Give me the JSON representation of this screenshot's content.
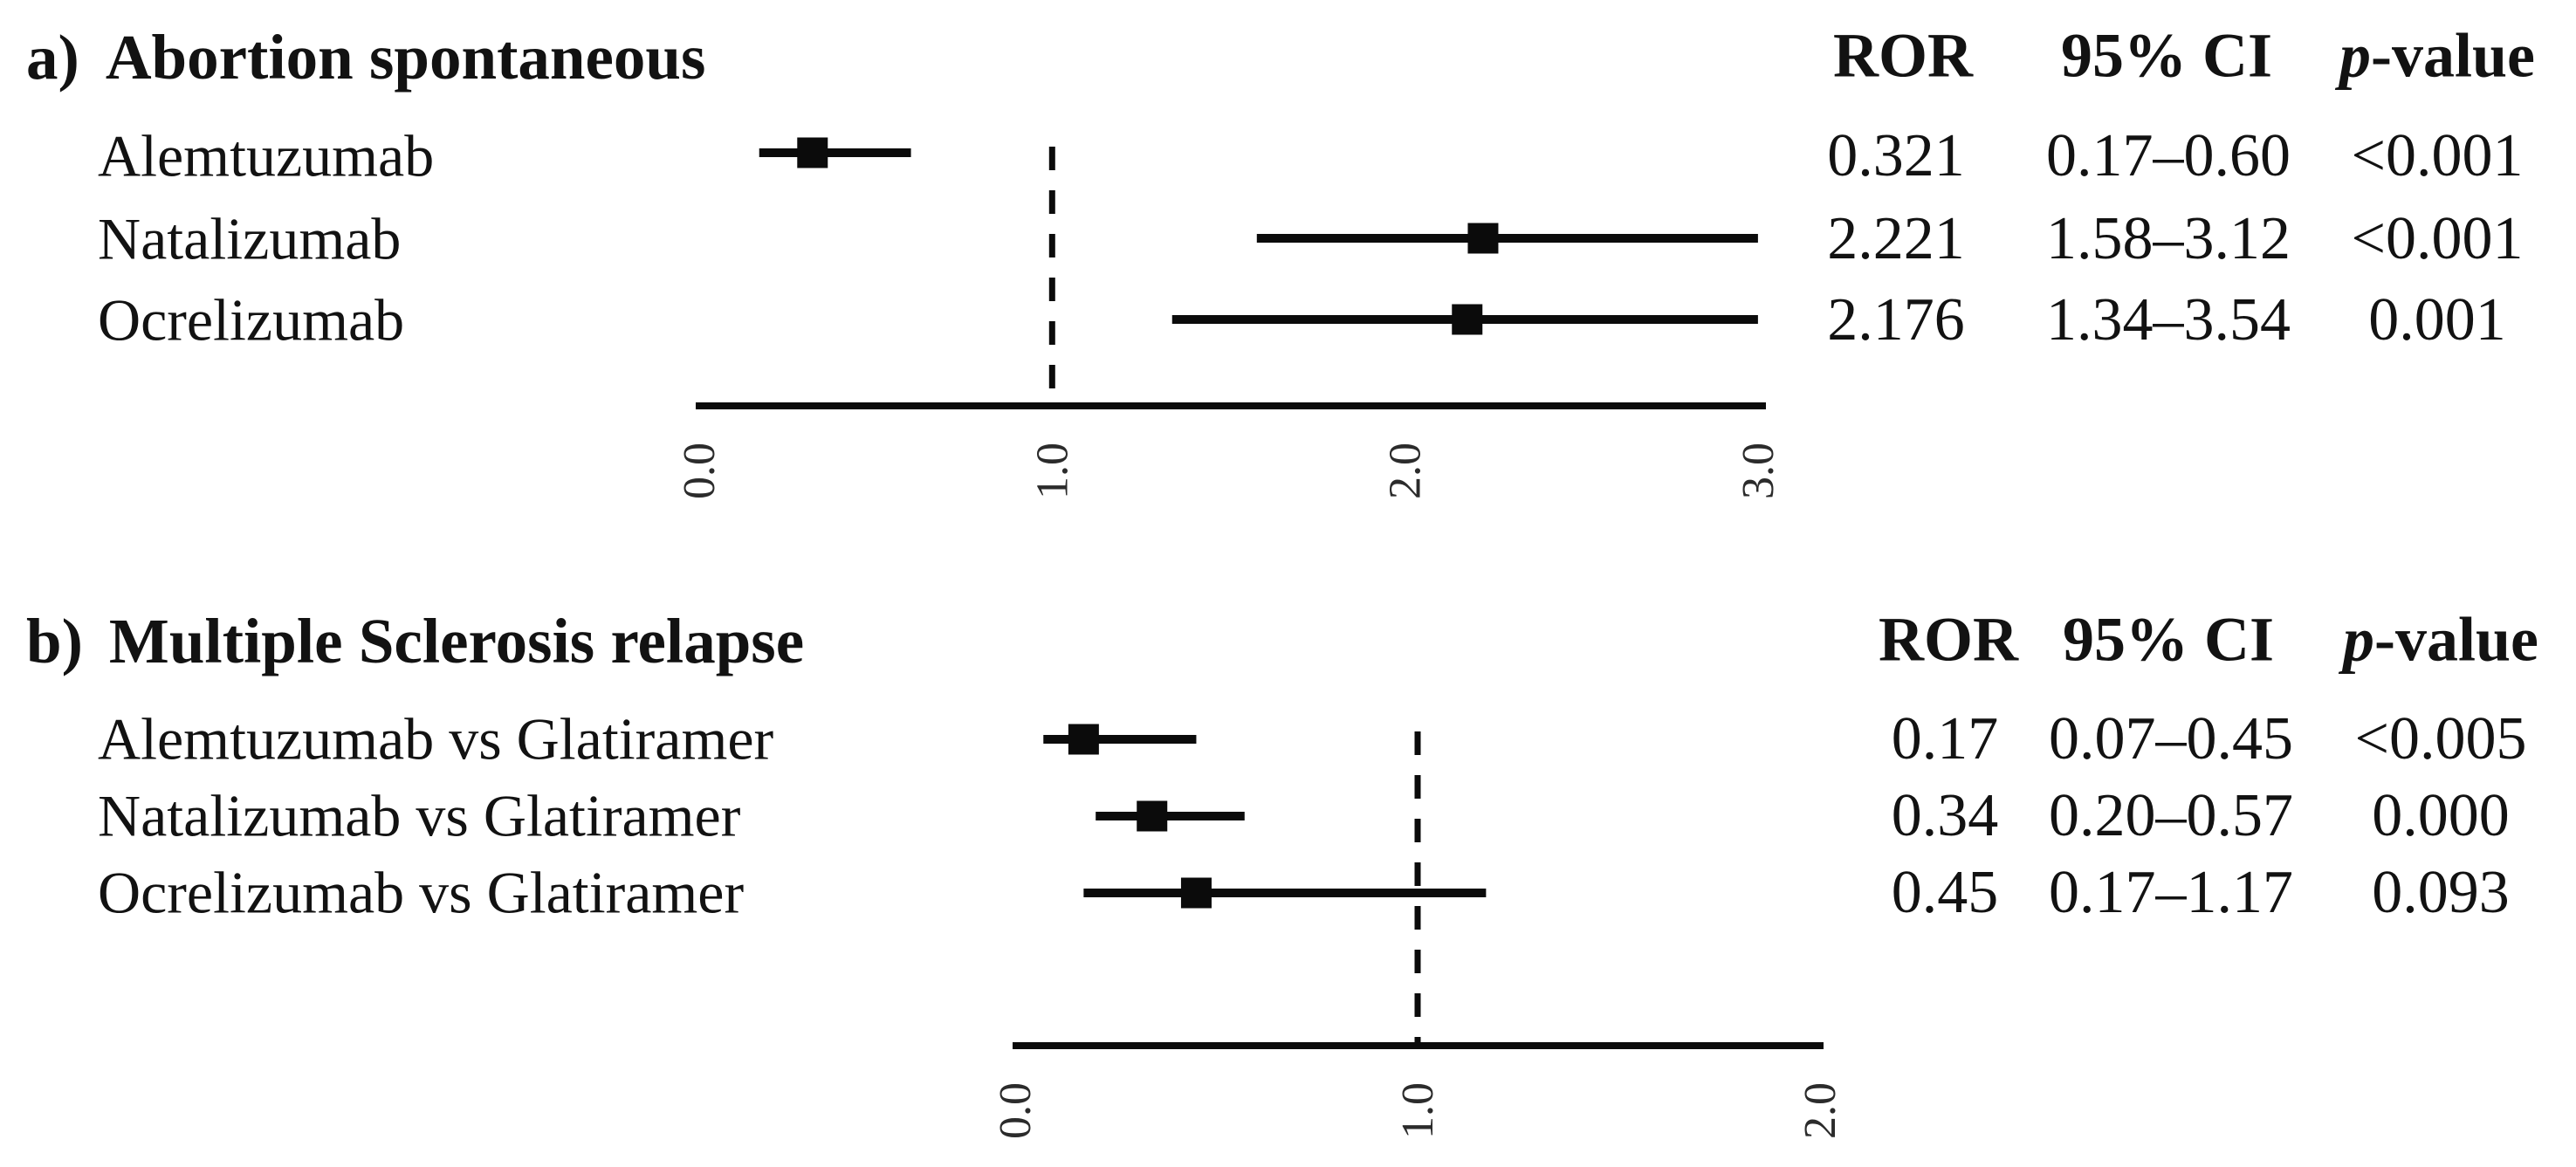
{
  "chart_data": [
    {
      "type": "forest",
      "panel_id": "a",
      "letter": "a)",
      "title": "Abortion spontaneous",
      "columns": {
        "ror": "ROR",
        "ci": "95% CI",
        "p_symbol": "p",
        "p_suffix": "-value"
      },
      "xlim": [
        0.0,
        3.0
      ],
      "ticks": [
        0.0,
        1.0,
        2.0,
        3.0
      ],
      "tick_labels": [
        "0.0",
        "1.0",
        "2.0",
        "3.0"
      ],
      "reference_line": 1.0,
      "grid": false,
      "rows": [
        {
          "label": "Alemtuzumab",
          "ror": 0.321,
          "ci_low": 0.17,
          "ci_high": 0.6,
          "ror_text": "0.321",
          "ci_text": "0.17–0.60",
          "p_text": "<0.001"
        },
        {
          "label": "Natalizumab",
          "ror": 2.221,
          "ci_low": 1.58,
          "ci_high": 3.12,
          "ror_text": "2.221",
          "ci_text": "1.58–3.12",
          "p_text": "<0.001"
        },
        {
          "label": "Ocrelizumab",
          "ror": 2.176,
          "ci_low": 1.34,
          "ci_high": 3.54,
          "ror_text": "2.176",
          "ci_text": "1.34–3.54",
          "p_text": "0.001"
        }
      ]
    },
    {
      "type": "forest",
      "panel_id": "b",
      "letter": "b)",
      "title": "Multiple Sclerosis relapse",
      "columns": {
        "ror": "ROR",
        "ci": "95% CI",
        "p_symbol": "p",
        "p_suffix": "-value"
      },
      "xlim": [
        0.0,
        2.0
      ],
      "ticks": [
        0.0,
        1.0,
        2.0
      ],
      "tick_labels": [
        "0.0",
        "1.0",
        "2.0"
      ],
      "reference_line": 1.0,
      "grid": false,
      "rows": [
        {
          "label": "Alemtuzumab vs Glatiramer",
          "ror": 0.17,
          "ci_low": 0.07,
          "ci_high": 0.45,
          "ror_text": "0.17",
          "ci_text": "0.07–0.45",
          "p_text": "<0.005"
        },
        {
          "label": "Natalizumab vs Glatiramer",
          "ror": 0.34,
          "ci_low": 0.2,
          "ci_high": 0.57,
          "ror_text": "0.34",
          "ci_text": "0.20–0.57",
          "p_text": "0.000"
        },
        {
          "label": "Ocrelizumab vs Glatiramer",
          "ror": 0.45,
          "ci_low": 0.17,
          "ci_high": 1.17,
          "ror_text": "0.45",
          "ci_text": "0.17–1.17",
          "p_text": "0.093"
        }
      ]
    }
  ],
  "colors": {
    "ink": "#0b0b0b",
    "tick_text": "#2b2b2b"
  }
}
